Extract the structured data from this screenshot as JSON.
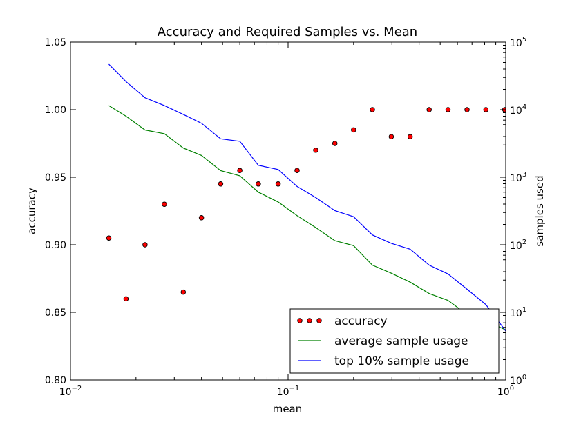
{
  "chart_data": {
    "type": "scatter+line",
    "title": "Accuracy and Required Samples vs. Mean",
    "xlabel": "mean",
    "ylabel_left": "accuracy",
    "ylabel_right": "samples used",
    "x_scale": "log",
    "xlim": [
      0.01,
      1.0
    ],
    "x_ticks": [
      {
        "value": 0.01,
        "base": "10",
        "exp": "−2"
      },
      {
        "value": 0.1,
        "base": "10",
        "exp": "−1"
      },
      {
        "value": 1.0,
        "base": "10",
        "exp": "0"
      }
    ],
    "ylim_left": [
      0.8,
      1.05
    ],
    "y_ticks_left": [
      "0.80",
      "0.85",
      "0.90",
      "0.95",
      "1.00",
      "1.05"
    ],
    "y_scale_right": "log",
    "ylim_right": [
      1,
      100000
    ],
    "y_ticks_right": [
      {
        "value": 1,
        "base": "10",
        "exp": "0"
      },
      {
        "value": 10,
        "base": "10",
        "exp": "1"
      },
      {
        "value": 100,
        "base": "10",
        "exp": "2"
      },
      {
        "value": 1000,
        "base": "10",
        "exp": "3"
      },
      {
        "value": 10000,
        "base": "10",
        "exp": "4"
      },
      {
        "value": 100000,
        "base": "10",
        "exp": "5"
      }
    ],
    "grid": false,
    "legend_position": "bottom-right",
    "series": [
      {
        "name": "accuracy",
        "kind": "scatter",
        "axis": "left",
        "color": "#ff0000",
        "x": [
          0.015,
          0.018,
          0.022,
          0.027,
          0.033,
          0.04,
          0.049,
          0.06,
          0.073,
          0.09,
          0.11,
          0.134,
          0.164,
          0.2,
          0.244,
          0.298,
          0.364,
          0.445,
          0.543,
          0.664,
          0.811,
          0.99
        ],
        "y": [
          0.905,
          0.86,
          0.9,
          0.93,
          0.865,
          0.92,
          0.945,
          0.955,
          0.945,
          0.945,
          0.955,
          0.97,
          0.975,
          0.985,
          1.0,
          0.98,
          0.98,
          1.0,
          1.0,
          1.0,
          1.0,
          1.0
        ]
      },
      {
        "name": "average sample usage",
        "kind": "line",
        "axis": "right",
        "color": "#008000",
        "x": [
          0.015,
          0.018,
          0.022,
          0.027,
          0.033,
          0.04,
          0.049,
          0.06,
          0.073,
          0.09,
          0.11,
          0.134,
          0.164,
          0.2,
          0.244,
          0.298,
          0.364,
          0.445,
          0.543,
          0.664,
          0.811,
          1.0
        ],
        "y": [
          11500,
          8000,
          5000,
          4400,
          2700,
          2100,
          1250,
          1050,
          600,
          430,
          270,
          180,
          115,
          97,
          50,
          38,
          28,
          19,
          15,
          9.3,
          7.5,
          5.5
        ]
      },
      {
        "name": "top 10% sample usage",
        "kind": "line",
        "axis": "right",
        "color": "#0000ff",
        "x": [
          0.015,
          0.018,
          0.022,
          0.027,
          0.033,
          0.04,
          0.049,
          0.06,
          0.073,
          0.09,
          0.11,
          0.134,
          0.164,
          0.2,
          0.244,
          0.298,
          0.364,
          0.445,
          0.543,
          0.664,
          0.811,
          1.0
        ],
        "y": [
          47000,
          26000,
          15000,
          11500,
          8500,
          6300,
          3700,
          3400,
          1500,
          1300,
          730,
          500,
          320,
          260,
          140,
          105,
          86,
          50,
          37,
          22,
          13,
          5.3
        ]
      }
    ]
  }
}
